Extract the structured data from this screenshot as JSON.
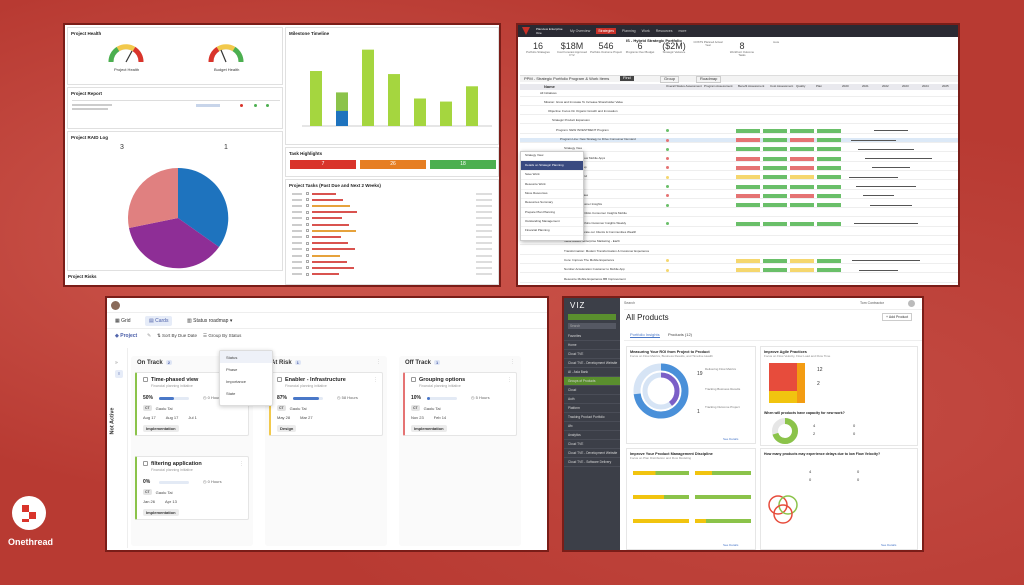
{
  "brand": {
    "name": "Onethread"
  },
  "p1": {
    "project_health": "Project Health",
    "gauge1_label": "Project Health",
    "gauge2_label": "Budget Health",
    "milestone_title": "Milestone Timeline",
    "project_report": "Project Report",
    "raid_title": "Project RAID Log",
    "raid_counts": [
      "3",
      "1"
    ],
    "task_highlights": "Task Highlights",
    "th_values": [
      "7",
      "26",
      "18"
    ],
    "project_tasks": "Project Tasks (Past Due and Next 2 Weeks)",
    "project_risks": "Project Risks",
    "bar_values": [
      3.6,
      2.2,
      5.0,
      3.4,
      1.8,
      1.6,
      2.6
    ]
  },
  "p2": {
    "brand": "Planview Enterprise One",
    "tabs": [
      "My Overview",
      "Strategies",
      "Planning",
      "Work",
      "Resources",
      "more"
    ],
    "active_tab": "Strategies",
    "portfolio_title": "IS - Hybrid Strategic Portfolio",
    "portfolio_sub": "Portfolio View",
    "metrics": [
      {
        "v": "16",
        "l": "Portfolio Strategies"
      },
      {
        "v": "$18M",
        "l": "Cost Forecast Approved FY2"
      },
      {
        "v": "546",
        "l": "Portfolio Outcome Project"
      },
      {
        "v": "6",
        "l": "Programs Over Budget"
      },
      {
        "v": "($2M)",
        "l": "Strategic Variance"
      },
      {
        "v": "",
        "l": "COSTS Planned Actual Year"
      },
      {
        "v": "8",
        "l": "Workfront Outcome Tasks"
      },
      {
        "v": "",
        "l": "more"
      }
    ],
    "filter_label": "PPM - Strategic Portfolio Program & Work Items",
    "buttons": [
      "Find",
      "Group",
      "Roadmap"
    ],
    "col_name": "Name",
    "col_headers": [
      "Overall Status Assessment",
      "Program Assessment",
      "Benefit Assessment",
      "Cost Assessment",
      "Quality",
      "Plan"
    ],
    "years": [
      "2020",
      "2021",
      "2022",
      "2023",
      "2024",
      "2025"
    ],
    "rows": [
      "All Initiatives",
      "Mission: Grow and Innovate To Increase Shareholder Value",
      "Objective: Focus On Organic Growth and Innovation",
      "Strategic Product Expansion",
      "Program: NEW INVESTMENT Program",
      "Program Line: New Strategy to Drive Consumer Demand",
      "Strategy View",
      "Expansion to New Mobile Apps",
      "Add to Roadmap",
      "Integrated Spend",
      "Reporting Hub",
      "Portfolio Overview",
      "Outcome Consumer Insights",
      "Application: Portfolio Consumer Insights Mobile",
      "Application Portfolio Customer Insights Weekly",
      "Mission: Accelerate our Clients & Communities Wealth",
      "Value Based: Enterprise Marketing - Earth",
      "Transformation: Modern Transformation & Customer Experience",
      "Core: Improve The Mobile Experience",
      "Number Acceleration Customer to Mobile App",
      "Resource Mobile Experience BB Improvement"
    ],
    "context_menu": [
      "Strategy View",
      "Details on Strategic Planning",
      "Save Work",
      "Resource Work",
      "Move Resources",
      "Resources Summary",
      "Prepare Plan Planning",
      "Outstanding Management",
      "Financial Planning"
    ]
  },
  "p3": {
    "tabs": [
      "Grid",
      "Cards",
      "Status roadmap"
    ],
    "active_tab": "Cards",
    "project_filter": "Project",
    "sort": "Sort By Due Date",
    "group": "Group By Status",
    "side_label": "Not Active",
    "columns": [
      {
        "title": "On Track",
        "count": "2"
      },
      {
        "title": "At Risk",
        "count": "1"
      },
      {
        "title": "Off Track",
        "count": "1"
      }
    ],
    "dropdown": [
      "Status",
      "Phase",
      "Importance",
      "State"
    ],
    "cards": [
      {
        "title": "Time-phased view",
        "sub": "Financial planning initiative",
        "pct": "50%",
        "progress": 0.5,
        "hours": "0 Hours",
        "avatar": "CT",
        "owner": "Gaolu Tai",
        "dates": [
          "Aug 17",
          "Aug 17",
          "Jul 1"
        ],
        "tag": "Implementation"
      },
      {
        "title": "filtering application",
        "sub": "Financial planning initiative",
        "pct": "0%",
        "progress": 0.0,
        "hours": "0 Hours",
        "avatar": "CT",
        "owner": "Gaolu Tai",
        "dates": [
          "Jan 26",
          "Apr 13"
        ],
        "tag": "Implementation"
      },
      {
        "title": "Enabler - Infrastructure",
        "sub": "Financial planning initiative",
        "pct": "87%",
        "progress": 0.87,
        "hours": "58 Hours",
        "avatar": "CT",
        "owner": "Gaolu Tai",
        "dates": [
          "May 28",
          "Mar 27"
        ],
        "tag": "Design"
      },
      {
        "title": "Grouping options",
        "sub": "Financial planning initiative",
        "pct": "10%",
        "progress": 0.1,
        "hours": "5 Hours",
        "avatar": "CT",
        "owner": "Gaolu Tai",
        "dates": [
          "Nov 23",
          "Feb 14"
        ],
        "tag": "Implementation"
      }
    ]
  },
  "p4": {
    "brand": "VIZ",
    "search": "Search",
    "user": "Tom Contractor",
    "title": "All Products",
    "add_button": "+ Add Product",
    "tabs": [
      "Portfolio Insights",
      "Products (12)"
    ],
    "nav": [
      "Favorites",
      "Home",
      "Cloud TVE",
      "Cloud TVE - Development Website",
      "AI - Asia Bank",
      "Groups of Products",
      "Cloud",
      "Auth",
      "Platform",
      "Tracking Product Portfolio",
      "Afx",
      "Analytics",
      "Cloud TVE",
      "Cloud TVE - Development Website",
      "Cloud TVE - Software Delivery"
    ],
    "c1_title": "Measuring Your ROI from Project to Product",
    "c1_sub": "Focus on Flow Metrics, Business Results, and Timeline Health",
    "c1_stats": [
      {
        "v": "19",
        "l": "Delivering Flow Metrics"
      },
      {
        "v": "",
        "l": "Tracking Business Results"
      },
      {
        "v": "1",
        "l": "Tracking Outcome Project"
      }
    ],
    "c2_title": "Improve Agile Practices",
    "c2_sub": "Focus on Flow Velocity, Flow Load and Flow Time",
    "c2_stats": [
      "12",
      "2"
    ],
    "c3_title": "Improve Your Product Management Discipline",
    "c3_sub": "Focus on Plan Distribution and Flow Modeling",
    "c4_title": "When will products have capacity for new work?",
    "c4_stats": [
      "4",
      "2",
      "0",
      "0"
    ],
    "c5_title": "How many products may experience delays due to low Flow Velocity?",
    "c5_stats": [
      "4",
      "0",
      "0",
      "0"
    ],
    "see_details": "See Details"
  }
}
